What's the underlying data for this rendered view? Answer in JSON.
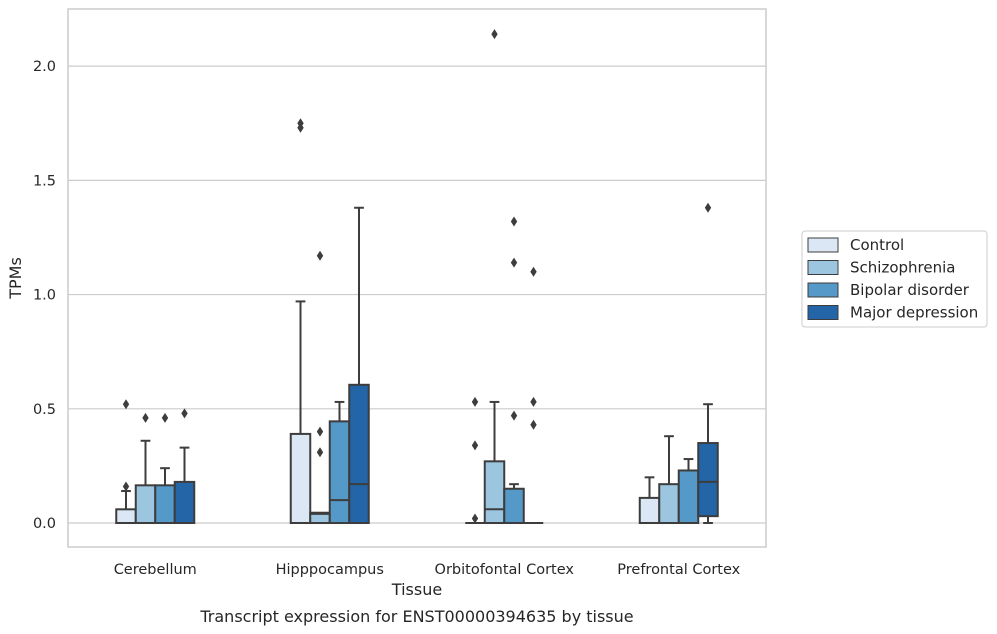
{
  "chart_data": {
    "type": "box",
    "title": "",
    "caption": "Transcript expression for ENST00000394635 by tissue",
    "xlabel": "Tissue",
    "ylabel": "TPMs",
    "ylim": [
      -0.105,
      2.25
    ],
    "yticks": [
      "0.0",
      "0.5",
      "1.0",
      "1.5",
      "2.0"
    ],
    "ytick_values": [
      0,
      0.5,
      1.0,
      1.5,
      2.0
    ],
    "grid": "horizontal",
    "legend_position": "right",
    "categories": [
      "Cerebellum",
      "Hipppocampus",
      "Orbitofontal Cortex",
      "Prefrontal Cortex"
    ],
    "series": [
      {
        "name": "Control",
        "color": "#dbe7f4",
        "boxes": [
          {
            "whisker_low": 0,
            "q1": 0,
            "median": 0,
            "q3": 0.06,
            "whisker_high": 0.14,
            "outliers": [
              0.16,
              0.52
            ]
          },
          {
            "whisker_low": 0,
            "q1": 0,
            "median": 0,
            "q3": 0.39,
            "whisker_high": 0.97,
            "outliers": [
              1.73,
              1.75
            ]
          },
          {
            "whisker_low": 0,
            "q1": 0,
            "median": 0,
            "q3": 0,
            "whisker_high": 0,
            "outliers": [
              0.02,
              0.34,
              0.53
            ]
          },
          {
            "whisker_low": 0,
            "q1": 0,
            "median": 0,
            "q3": 0.11,
            "whisker_high": 0.2,
            "outliers": []
          }
        ]
      },
      {
        "name": "Schizophrenia",
        "color": "#9cc6e0",
        "boxes": [
          {
            "whisker_low": 0,
            "q1": 0,
            "median": 0,
            "q3": 0.165,
            "whisker_high": 0.36,
            "outliers": [
              0.46
            ]
          },
          {
            "whisker_low": 0,
            "q1": 0,
            "median": 0.04,
            "q3": 0.045,
            "whisker_high": 0.045,
            "outliers": [
              0.31,
              0.4,
              1.17
            ]
          },
          {
            "whisker_low": 0,
            "q1": 0,
            "median": 0.06,
            "q3": 0.27,
            "whisker_high": 0.53,
            "outliers": [
              2.14
            ]
          },
          {
            "whisker_low": 0,
            "q1": 0,
            "median": 0,
            "q3": 0.17,
            "whisker_high": 0.38,
            "outliers": []
          }
        ]
      },
      {
        "name": "Bipolar disorder",
        "color": "#5499c7",
        "boxes": [
          {
            "whisker_low": 0,
            "q1": 0,
            "median": 0,
            "q3": 0.165,
            "whisker_high": 0.24,
            "outliers": [
              0.46
            ]
          },
          {
            "whisker_low": 0,
            "q1": 0,
            "median": 0.1,
            "q3": 0.445,
            "whisker_high": 0.53,
            "outliers": []
          },
          {
            "whisker_low": 0,
            "q1": 0,
            "median": 0,
            "q3": 0.15,
            "whisker_high": 0.17,
            "outliers": [
              0.47,
              1.14,
              1.32
            ]
          },
          {
            "whisker_low": 0,
            "q1": 0,
            "median": 0,
            "q3": 0.23,
            "whisker_high": 0.28,
            "outliers": []
          }
        ]
      },
      {
        "name": "Major depression",
        "color": "#2365a6",
        "boxes": [
          {
            "whisker_low": 0,
            "q1": 0,
            "median": 0,
            "q3": 0.18,
            "whisker_high": 0.33,
            "outliers": [
              0.48
            ]
          },
          {
            "whisker_low": 0,
            "q1": 0,
            "median": 0.17,
            "q3": 0.605,
            "whisker_high": 1.38,
            "outliers": []
          },
          {
            "whisker_low": 0,
            "q1": 0,
            "median": 0,
            "q3": 0,
            "whisker_high": 0,
            "outliers": [
              0.43,
              0.53,
              1.1
            ]
          },
          {
            "whisker_low": 0,
            "q1": 0.03,
            "median": 0.18,
            "q3": 0.35,
            "whisker_high": 0.52,
            "outliers": [
              1.38
            ]
          }
        ]
      }
    ]
  }
}
